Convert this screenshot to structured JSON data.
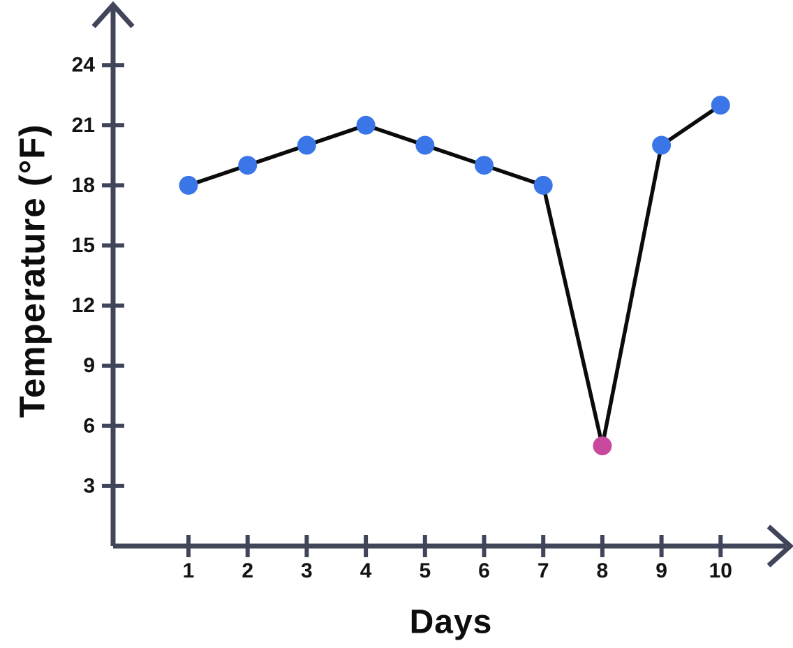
{
  "page": {
    "background_color": "#ffffff"
  },
  "chart_data": {
    "type": "line",
    "title": "",
    "xlabel": "Days",
    "ylabel": "Temperature (°F)",
    "x": [
      1,
      2,
      3,
      4,
      5,
      6,
      7,
      8,
      9,
      10
    ],
    "x_tick_labels": [
      "1",
      "2",
      "3",
      "4",
      "5",
      "6",
      "7",
      "8",
      "9",
      "10"
    ],
    "values": [
      18,
      19,
      20,
      21,
      20,
      19,
      18,
      5,
      20,
      22
    ],
    "y_tick_values": [
      3,
      6,
      9,
      12,
      15,
      18,
      21,
      24
    ],
    "y_tick_labels": [
      "3",
      "6",
      "9",
      "12",
      "15",
      "18",
      "21",
      "24"
    ],
    "ylim": [
      0,
      27
    ],
    "xlim": [
      0,
      11.5
    ],
    "grid": false,
    "legend": false,
    "highlight_index": 7,
    "colors": {
      "line": "#0b0b0b",
      "marker": "#3b76e8",
      "marker_highlight": "#c7489c",
      "axis": "#40455a",
      "label_text": "#131313"
    }
  }
}
